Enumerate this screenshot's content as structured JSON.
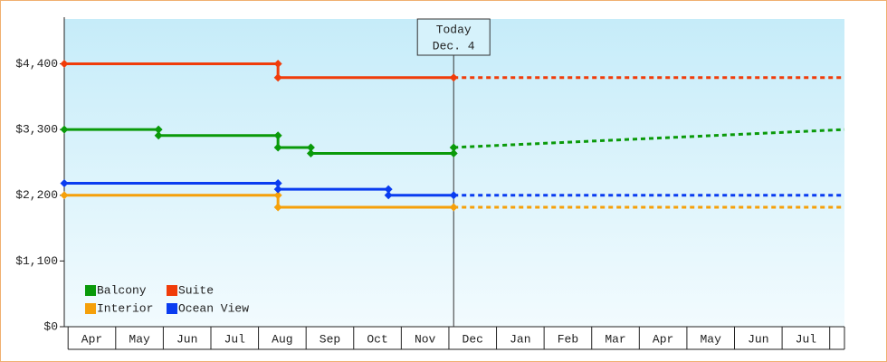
{
  "chart_data": {
    "type": "step-line",
    "annotation": {
      "x": 8.1,
      "lines": [
        "Today",
        "Dec. 4"
      ]
    },
    "xlim": [
      -0.08,
      16.31
    ],
    "ylim": [
      0,
      5150
    ],
    "yticks": [
      {
        "value": 0,
        "label": "$0"
      },
      {
        "value": 1100,
        "label": "$1,100"
      },
      {
        "value": 2200,
        "label": "$2,200"
      },
      {
        "value": 3300,
        "label": "$3,300"
      },
      {
        "value": 4400,
        "label": "$4,400"
      }
    ],
    "xticks": [
      {
        "value": 0.5,
        "label": "Apr"
      },
      {
        "value": 1.5,
        "label": "May"
      },
      {
        "value": 2.5,
        "label": "Jun"
      },
      {
        "value": 3.5,
        "label": "Jul"
      },
      {
        "value": 4.5,
        "label": "Aug"
      },
      {
        "value": 5.5,
        "label": "Sep"
      },
      {
        "value": 6.5,
        "label": "Oct"
      },
      {
        "value": 7.5,
        "label": "Nov"
      },
      {
        "value": 8.5,
        "label": "Dec"
      },
      {
        "value": 9.5,
        "label": "Jan"
      },
      {
        "value": 10.5,
        "label": "Feb"
      },
      {
        "value": 11.5,
        "label": "Mar"
      },
      {
        "value": 12.5,
        "label": "Apr"
      },
      {
        "value": 13.5,
        "label": "May"
      },
      {
        "value": 14.5,
        "label": "Jun"
      },
      {
        "value": 15.5,
        "label": "Jul"
      }
    ],
    "legend": "bottom-left",
    "series": [
      {
        "name": "Balcony",
        "color": "#0a9a0a",
        "x": [
          -0.08,
          1.9,
          1.9,
          4.41,
          4.41,
          5.1,
          5.1,
          8.1,
          8.1
        ],
        "values": [
          3300,
          3300,
          3200,
          3200,
          3000,
          3000,
          2900,
          2900,
          3000
        ],
        "projection": {
          "x": [
            8.1,
            16.31
          ],
          "values": [
            3000,
            3300
          ]
        }
      },
      {
        "name": "Suite",
        "color": "#f03c0a",
        "x": [
          -0.08,
          4.41,
          4.41,
          8.1
        ],
        "values": [
          4400,
          4400,
          4170,
          4170
        ],
        "projection": {
          "x": [
            8.1,
            16.31
          ],
          "values": [
            4170,
            4170
          ]
        }
      },
      {
        "name": "Interior",
        "color": "#f5a00a",
        "x": [
          -0.08,
          4.41,
          4.41,
          8.1
        ],
        "values": [
          2200,
          2200,
          2000,
          2000
        ],
        "projection": {
          "x": [
            8.1,
            16.31
          ],
          "values": [
            2000,
            2000
          ]
        }
      },
      {
        "name": "Ocean View",
        "color": "#0a3cf0",
        "x": [
          -0.08,
          4.41,
          4.41,
          6.73,
          6.73,
          8.1
        ],
        "values": [
          2400,
          2400,
          2300,
          2300,
          2200,
          2200
        ],
        "projection": {
          "x": [
            8.1,
            16.31
          ],
          "values": [
            2200,
            2200
          ]
        }
      }
    ]
  }
}
